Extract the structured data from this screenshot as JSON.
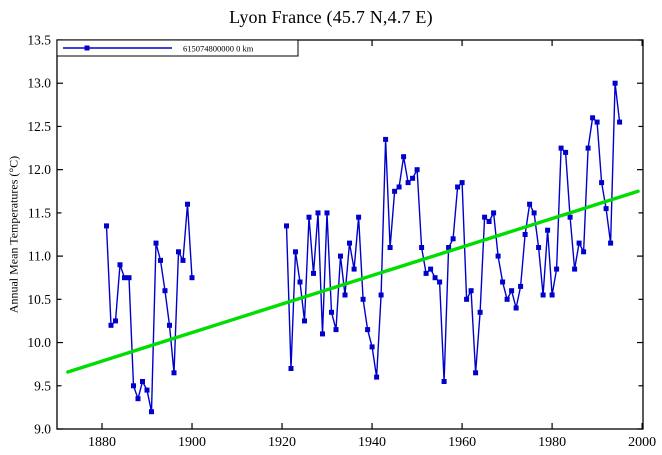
{
  "title": "Lyon France (45.7 N,4.7 E)",
  "chart_data": {
    "type": "line",
    "title": "Lyon France (45.7 N,4.7 E)",
    "xlabel": "",
    "ylabel": "Annual Mean Temperatures (°C)",
    "xlim": [
      1870,
      2000.2
    ],
    "ylim": [
      9.0,
      13.5
    ],
    "x_ticks": [
      1880,
      1900,
      1920,
      1940,
      1960,
      1980,
      2000
    ],
    "y_ticks": [
      9.0,
      9.5,
      10.0,
      10.5,
      11.0,
      11.5,
      12.0,
      12.5,
      13.0,
      13.5
    ],
    "grid": false,
    "legend_position": "top-left",
    "axis_color": "#000000",
    "series": [
      {
        "name": "615074800000 0 km",
        "color": "#0000CC",
        "marker": "square",
        "segments": [
          [
            [
              1881,
              11.35
            ],
            [
              1882,
              10.2
            ],
            [
              1883,
              10.25
            ],
            [
              1884,
              10.9
            ],
            [
              1885,
              10.75
            ],
            [
              1886,
              10.75
            ],
            [
              1887,
              9.5
            ],
            [
              1888,
              9.35
            ],
            [
              1889,
              9.55
            ],
            [
              1890,
              9.45
            ],
            [
              1891,
              9.2
            ],
            [
              1892,
              11.15
            ],
            [
              1893,
              10.95
            ],
            [
              1894,
              10.6
            ],
            [
              1895,
              10.2
            ],
            [
              1896,
              9.65
            ],
            [
              1897,
              11.05
            ],
            [
              1898,
              10.95
            ],
            [
              1899,
              11.6
            ],
            [
              1900,
              10.75
            ]
          ],
          [
            [
              1921,
              11.35
            ],
            [
              1922,
              9.7
            ],
            [
              1923,
              11.05
            ],
            [
              1924,
              10.7
            ],
            [
              1925,
              10.25
            ],
            [
              1926,
              11.45
            ],
            [
              1927,
              10.8
            ],
            [
              1928,
              11.5
            ],
            [
              1929,
              10.1
            ],
            [
              1930,
              11.5
            ],
            [
              1931,
              10.35
            ],
            [
              1932,
              10.15
            ],
            [
              1933,
              11.0
            ],
            [
              1934,
              10.55
            ],
            [
              1935,
              11.15
            ],
            [
              1936,
              10.85
            ],
            [
              1937,
              11.45
            ],
            [
              1938,
              10.5
            ],
            [
              1939,
              10.15
            ],
            [
              1940,
              9.95
            ],
            [
              1941,
              9.6
            ],
            [
              1942,
              10.55
            ],
            [
              1943,
              12.35
            ],
            [
              1944,
              11.1
            ],
            [
              1945,
              11.75
            ],
            [
              1946,
              11.8
            ],
            [
              1947,
              12.15
            ],
            [
              1948,
              11.85
            ],
            [
              1949,
              11.9
            ],
            [
              1950,
              12.0
            ],
            [
              1951,
              11.1
            ],
            [
              1952,
              10.8
            ],
            [
              1953,
              10.85
            ],
            [
              1954,
              10.75
            ],
            [
              1955,
              10.7
            ],
            [
              1956,
              9.55
            ],
            [
              1957,
              11.1
            ],
            [
              1958,
              11.2
            ],
            [
              1959,
              11.8
            ],
            [
              1960,
              11.85
            ],
            [
              1961,
              10.5
            ],
            [
              1962,
              10.6
            ],
            [
              1963,
              9.65
            ],
            [
              1964,
              10.35
            ],
            [
              1965,
              11.45
            ],
            [
              1966,
              11.4
            ],
            [
              1967,
              11.5
            ],
            [
              1968,
              11.0
            ],
            [
              1969,
              10.7
            ],
            [
              1970,
              10.5
            ],
            [
              1971,
              10.6
            ],
            [
              1972,
              10.4
            ],
            [
              1973,
              10.65
            ],
            [
              1974,
              11.25
            ],
            [
              1975,
              11.6
            ],
            [
              1976,
              11.5
            ],
            [
              1977,
              11.1
            ],
            [
              1978,
              10.55
            ],
            [
              1979,
              11.3
            ],
            [
              1980,
              10.55
            ],
            [
              1981,
              10.85
            ],
            [
              1982,
              12.25
            ],
            [
              1983,
              12.2
            ],
            [
              1984,
              11.45
            ],
            [
              1985,
              10.85
            ],
            [
              1986,
              11.15
            ],
            [
              1987,
              11.05
            ],
            [
              1988,
              12.25
            ],
            [
              1989,
              12.6
            ],
            [
              1990,
              12.55
            ],
            [
              1991,
              11.85
            ],
            [
              1992,
              11.55
            ],
            [
              1993,
              11.15
            ],
            [
              1994,
              13.0
            ],
            [
              1995,
              12.55
            ]
          ]
        ]
      }
    ],
    "trend": {
      "color": "#00DD00",
      "x_start": 1872.4,
      "y_start": 9.66,
      "x_end": 1999.1,
      "y_end": 11.75
    }
  }
}
